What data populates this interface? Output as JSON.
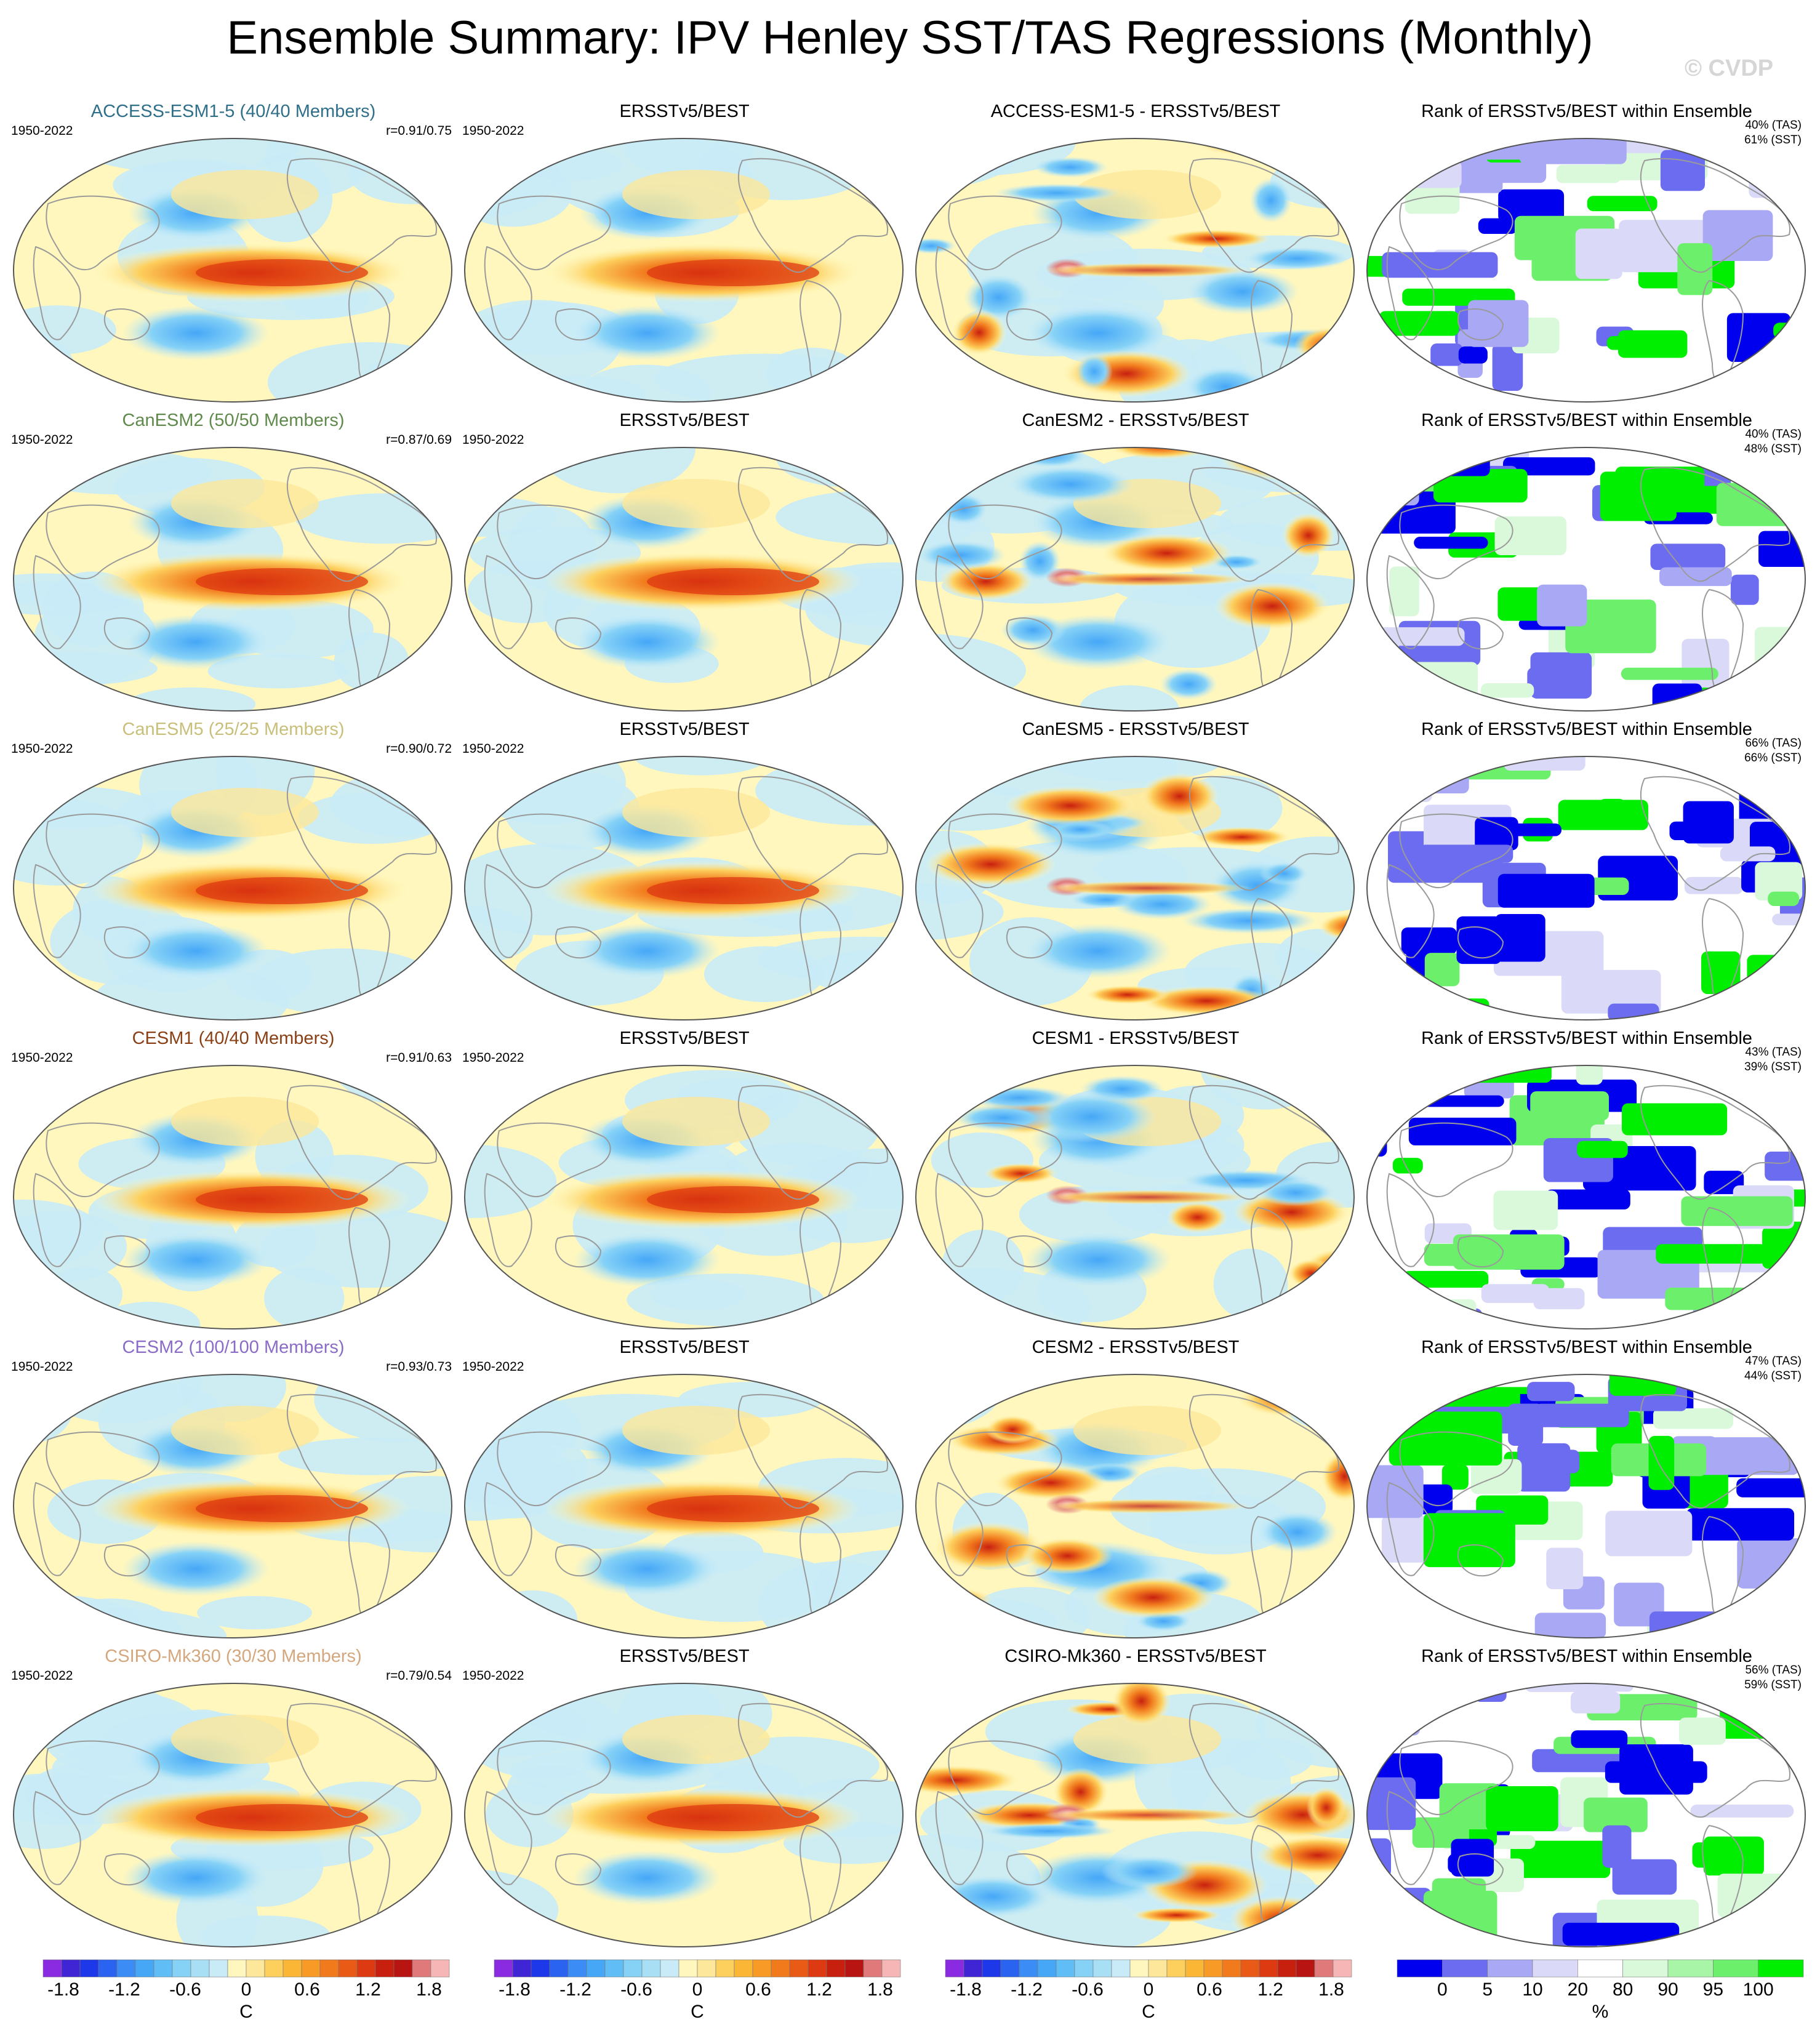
{
  "title": "Ensemble Summary: IPV Henley SST/TAS Regressions (Monthly)",
  "watermark": "© CVDP",
  "obs_title": "ERSSTv5/BEST",
  "rank_title": "Rank of ERSSTv5/BEST within Ensemble",
  "period": "1950-2022",
  "rows": [
    {
      "model_title": "ACCESS-ESM1-5 (40/40 Members)",
      "title_color": "#2f6f8a",
      "corr": "r=0.91/0.75",
      "diff_title": "ACCESS-ESM1-5 - ERSSTv5/BEST",
      "pct_tas": "40% (TAS)",
      "pct_sst": "61% (SST)"
    },
    {
      "model_title": "CanESM2 (50/50 Members)",
      "title_color": "#5f8a4c",
      "corr": "r=0.87/0.69",
      "diff_title": "CanESM2 - ERSSTv5/BEST",
      "pct_tas": "40% (TAS)",
      "pct_sst": "48% (SST)"
    },
    {
      "model_title": "CanESM5 (25/25 Members)",
      "title_color": "#c8bf7a",
      "corr": "r=0.90/0.72",
      "diff_title": "CanESM5 - ERSSTv5/BEST",
      "pct_tas": "66% (TAS)",
      "pct_sst": "66% (SST)"
    },
    {
      "model_title": "CESM1 (40/40 Members)",
      "title_color": "#8a3f14",
      "corr": "r=0.91/0.63",
      "diff_title": "CESM1 - ERSSTv5/BEST",
      "pct_tas": "43% (TAS)",
      "pct_sst": "39% (SST)"
    },
    {
      "model_title": "CESM2 (100/100 Members)",
      "title_color": "#8a6cc8",
      "corr": "r=0.93/0.73",
      "diff_title": "CESM2 - ERSSTv5/BEST",
      "pct_tas": "47% (TAS)",
      "pct_sst": "44% (SST)"
    },
    {
      "model_title": "CSIRO-Mk360 (30/30 Members)",
      "title_color": "#d4a77e",
      "corr": "r=0.79/0.54",
      "diff_title": "CSIRO-Mk360 - ERSSTv5/BEST",
      "pct_tas": "56% (TAS)",
      "pct_sst": "59% (SST)"
    }
  ],
  "colorbars": {
    "regression": {
      "labels": [
        "-1.8",
        "-1.2",
        "-0.6",
        "0",
        "0.6",
        "1.2",
        "1.8"
      ],
      "unit": "C",
      "colors": [
        "#8a2be2",
        "#3f25d4",
        "#1d38e8",
        "#2a63f0",
        "#3b8cf5",
        "#46a7f7",
        "#60bdf6",
        "#86d2f7",
        "#a8dff5",
        "#c9ebf7",
        "#fff7bd",
        "#fde79a",
        "#fdd05e",
        "#fbb635",
        "#f79a26",
        "#f17a1d",
        "#e85a16",
        "#dd3a12",
        "#c8200f",
        "#b81411",
        "#e07a7a",
        "#f6b6b6"
      ]
    },
    "rank": {
      "labels": [
        "0",
        "5",
        "10",
        "20",
        "80",
        "90",
        "95",
        "100"
      ],
      "unit": "%",
      "colors": [
        "#0000ee",
        "#6c6cf0",
        "#a8a8f5",
        "#dadaf8",
        "#ffffff",
        "#daf8da",
        "#a8f5a8",
        "#6cf06c",
        "#00ee00"
      ]
    }
  },
  "chart_data": {
    "type": "heatmap",
    "title": "Ensemble Summary: IPV Henley SST/TAS Regressions (Monthly)",
    "panels_per_row": [
      "model ensemble mean regression",
      "ERSSTv5/BEST",
      "model - ERSSTv5/BEST",
      "Rank of ERSSTv5/BEST within Ensemble"
    ],
    "models": [
      "ACCESS-ESM1-5",
      "CanESM2",
      "CanESM5",
      "CESM1",
      "CESM2",
      "CSIRO-Mk360"
    ],
    "members": [
      40,
      50,
      25,
      40,
      100,
      30
    ],
    "pattern_corr_tas": [
      0.91,
      0.87,
      0.9,
      0.91,
      0.93,
      0.79
    ],
    "pattern_corr_sst": [
      0.75,
      0.69,
      0.72,
      0.63,
      0.73,
      0.54
    ],
    "rank_pct_tas": [
      40,
      40,
      66,
      43,
      47,
      56
    ],
    "rank_pct_sst": [
      61,
      48,
      66,
      39,
      44,
      59
    ],
    "regression_range": [
      -2.0,
      2.0
    ],
    "regression_unit": "C",
    "rank_unit": "%",
    "projection": "Robinson"
  }
}
